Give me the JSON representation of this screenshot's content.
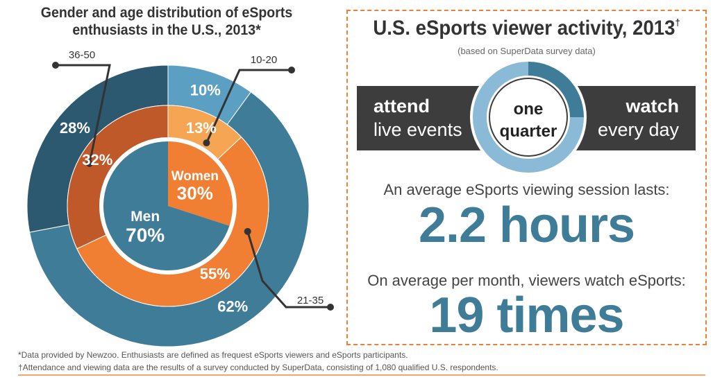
{
  "left_chart": {
    "title_line1": "Gender and age distribution of eSports",
    "title_line2": "enthusiasts in the U.S., 2013*"
  },
  "chart_data": [
    {
      "type": "pie",
      "title": "Gender and age distribution of eSports enthusiasts in the U.S., 2013*",
      "gender": [
        {
          "label": "Men",
          "value": 70,
          "value_label": "70%",
          "color": "#3f7c98"
        },
        {
          "label": "Women",
          "value": 30,
          "value_label": "30%",
          "color": "#f07f33"
        }
      ],
      "age_men": [
        {
          "label": "10-20",
          "value": 10,
          "value_label": "10%",
          "color": "#5b9fc3"
        },
        {
          "label": "21-35",
          "value": 62,
          "value_label": "62%",
          "color": "#3f7c98"
        },
        {
          "label": "36-50",
          "value": 28,
          "value_label": "28%",
          "color": "#2c5870"
        }
      ],
      "age_women": [
        {
          "label": "10-20",
          "value": 13,
          "value_label": "13%",
          "color": "#f6a553"
        },
        {
          "label": "21-35",
          "value": 55,
          "value_label": "55%",
          "color": "#f07f33"
        },
        {
          "label": "36-50",
          "value": 32,
          "value_label": "32%",
          "color": "#c0592a"
        }
      ]
    },
    {
      "type": "pie",
      "title": "one quarter",
      "slices": [
        {
          "value": 25,
          "color": "#3f7c98"
        },
        {
          "value": 75,
          "color": "#8bbad6"
        }
      ]
    }
  ],
  "panel": {
    "title": "U.S. eSports viewer activity, 2013",
    "title_mark": "†",
    "subtitle": "(based on SuperData survey data)",
    "band_left_bold": "attend",
    "band_left_light": "live events",
    "band_right_bold": "watch",
    "band_right_light": "every day",
    "ring_line1": "one",
    "ring_line2": "quarter",
    "session_label": "An average eSports viewing session lasts:",
    "session_value": "2.2 hours",
    "month_label": "On average per month, viewers watch eSports:",
    "month_value": "19 times"
  },
  "footnotes": {
    "note1": "*Data provided by Newzoo. Enthusiasts are defined as frequest eSports viewers and eSports participants.",
    "note2": "†Attendance and viewing data are the results of a survey conducted by SuperData, consisting of 1,080 qualified U.S. respondents."
  }
}
